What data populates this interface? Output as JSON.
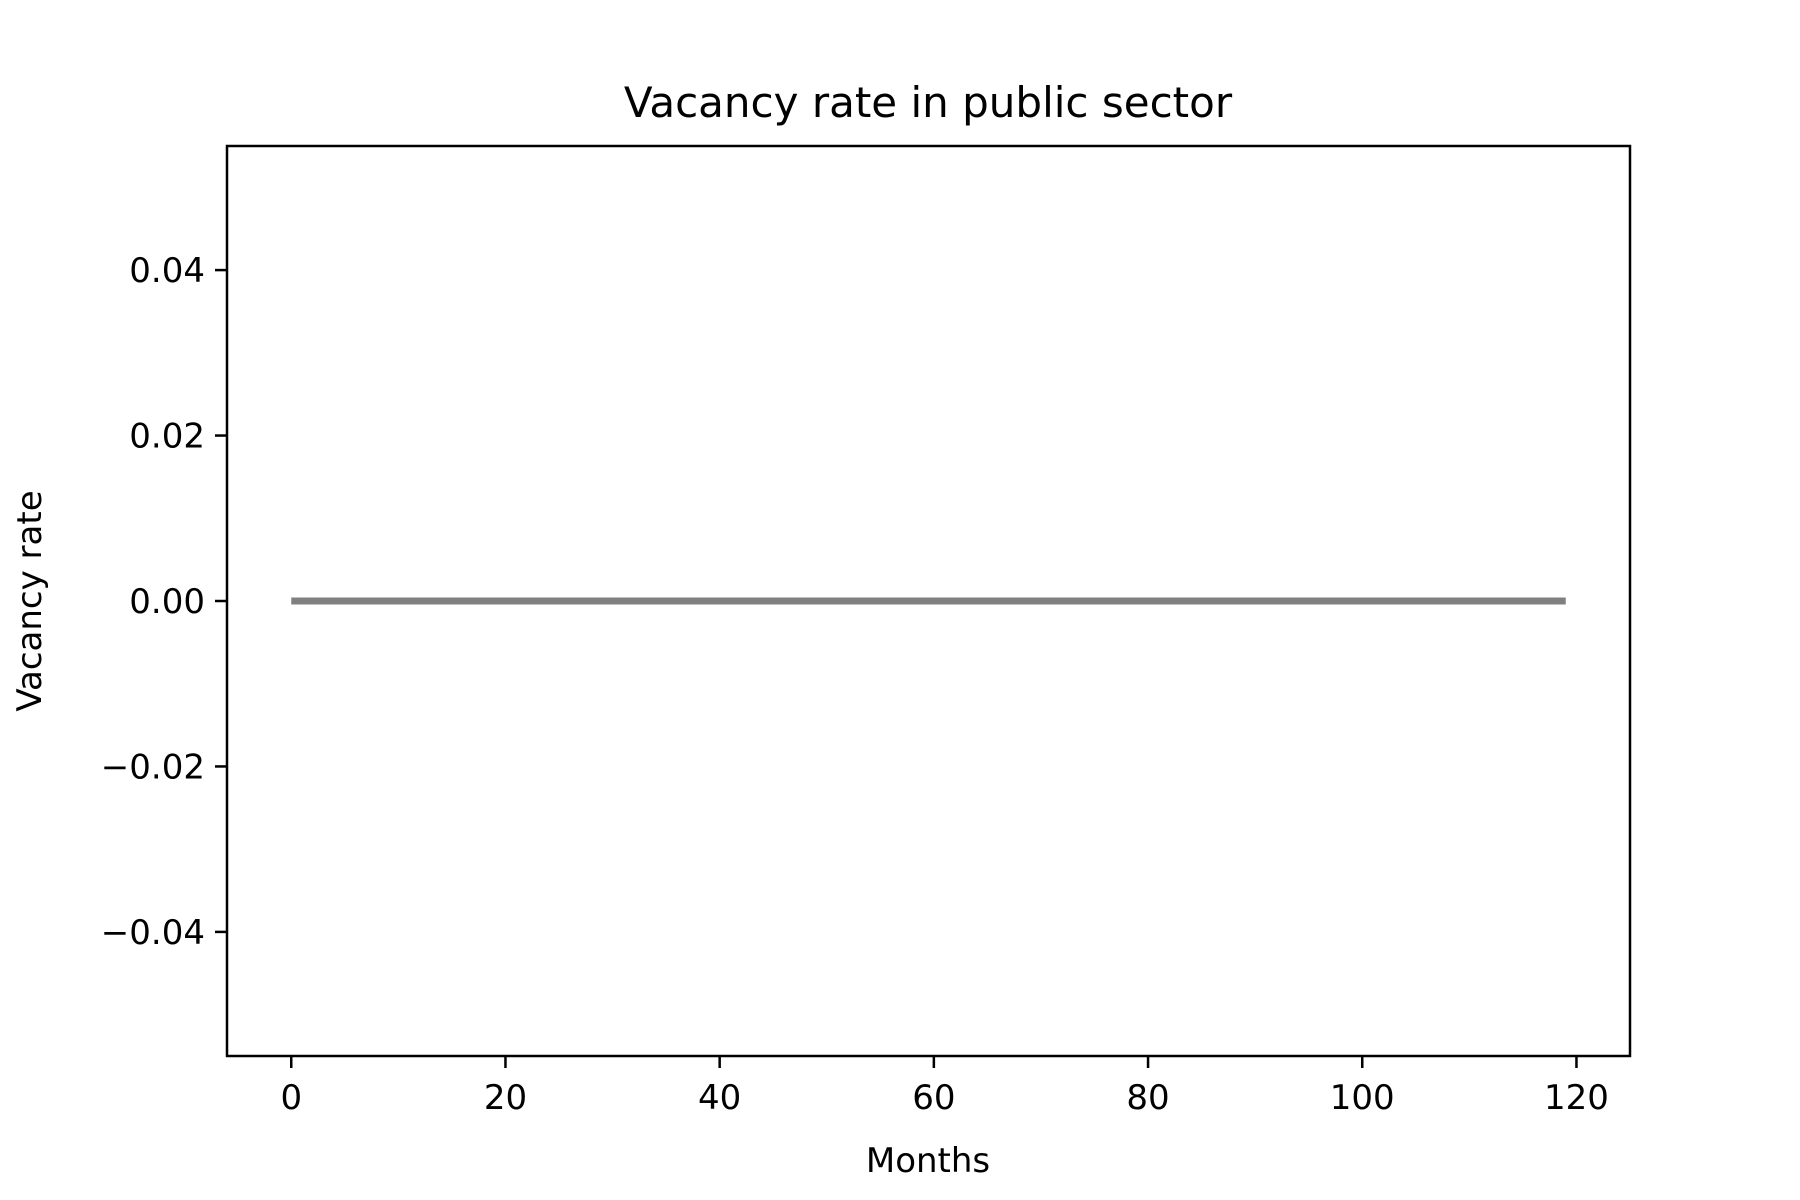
{
  "chart_data": {
    "type": "line",
    "title": "Vacancy rate in public sector",
    "xlabel": "Months",
    "ylabel": "Vacancy rate",
    "xlim": [
      -6,
      125
    ],
    "ylim": [
      -0.055,
      0.055
    ],
    "x_ticks": [
      0,
      20,
      40,
      60,
      80,
      100,
      120
    ],
    "x_tick_labels": [
      "0",
      "20",
      "40",
      "60",
      "80",
      "100",
      "120"
    ],
    "y_ticks": [
      0.04,
      0.02,
      0.0,
      -0.02,
      -0.04
    ],
    "y_tick_labels": [
      "0.04",
      "0.02",
      "0.00",
      "−0.02",
      "−0.04"
    ],
    "grid": false,
    "series": [
      {
        "color": "#808080",
        "x": [
          0,
          119
        ],
        "y": [
          0.0,
          0.0
        ]
      }
    ]
  }
}
